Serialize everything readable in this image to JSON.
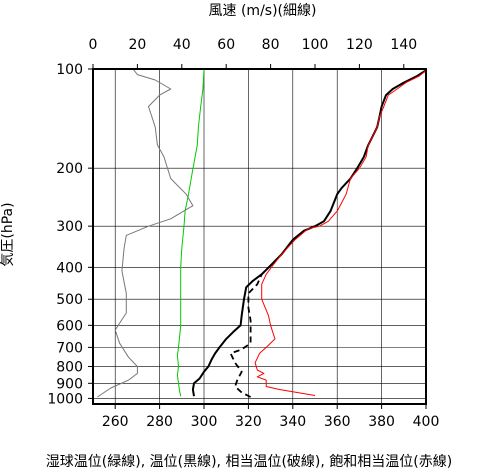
{
  "chart_data": {
    "type": "line",
    "top_axis_label": "風速 (m/s)(細線)",
    "bottom_axis_label": "湿球温位(緑線), 温位(黒線), 相当温位(破線), 飽和相当温位(赤線)",
    "y_axis_label": "気圧(hPa)",
    "y_scale": "log",
    "y_inverted": true,
    "ylim": [
      1040,
      100
    ],
    "y_ticks": [
      100,
      200,
      300,
      400,
      500,
      600,
      700,
      800,
      900,
      1000
    ],
    "x_bottom_range": [
      250,
      400
    ],
    "x_bottom_ticks": [
      260,
      280,
      300,
      320,
      340,
      360,
      380,
      400
    ],
    "x_top_range": [
      0,
      150
    ],
    "x_top_ticks": [
      0,
      20,
      40,
      60,
      80,
      100,
      120,
      140
    ],
    "grid": true,
    "series": [
      {
        "name": "湿球温位",
        "axis": "bottom",
        "color": "#00cc00",
        "dash": false,
        "points": [
          [
            289.5,
            985
          ],
          [
            289,
            950
          ],
          [
            288.5,
            900
          ],
          [
            288,
            850
          ],
          [
            288.5,
            800
          ],
          [
            288,
            740
          ],
          [
            288.5,
            700
          ],
          [
            289,
            650
          ],
          [
            289.5,
            600
          ],
          [
            289.5,
            550
          ],
          [
            289.5,
            500
          ],
          [
            289.5,
            450
          ],
          [
            289.5,
            400
          ],
          [
            290,
            350
          ],
          [
            291,
            300
          ],
          [
            291.5,
            270
          ],
          [
            293,
            240
          ],
          [
            294.5,
            210
          ],
          [
            296,
            185
          ],
          [
            297,
            170
          ],
          [
            297.5,
            150
          ],
          [
            298.5,
            130
          ],
          [
            299.5,
            115
          ],
          [
            300,
            100
          ]
        ]
      },
      {
        "name": "温位",
        "axis": "bottom",
        "color": "#000000",
        "dash": false,
        "points": [
          [
            295.5,
            985
          ],
          [
            295,
            940
          ],
          [
            295.5,
            900
          ],
          [
            298,
            870
          ],
          [
            300,
            830
          ],
          [
            302,
            800
          ],
          [
            303.5,
            760
          ],
          [
            305,
            730
          ],
          [
            307,
            700
          ],
          [
            310,
            660
          ],
          [
            313,
            630
          ],
          [
            316.5,
            600
          ],
          [
            317,
            560
          ],
          [
            318,
            500
          ],
          [
            319,
            460
          ],
          [
            322,
            440
          ],
          [
            326,
            420
          ],
          [
            330,
            395
          ],
          [
            335,
            365
          ],
          [
            340,
            330
          ],
          [
            345,
            310
          ],
          [
            350,
            300
          ],
          [
            354,
            290
          ],
          [
            357,
            270
          ],
          [
            360,
            240
          ],
          [
            362,
            230
          ],
          [
            366,
            215
          ],
          [
            369,
            200
          ],
          [
            372,
            185
          ],
          [
            374,
            170
          ],
          [
            376,
            160
          ],
          [
            378,
            150
          ],
          [
            379,
            140
          ],
          [
            380,
            130
          ],
          [
            382,
            120
          ],
          [
            385,
            115
          ],
          [
            390,
            110
          ],
          [
            396,
            105
          ],
          [
            400,
            101
          ]
        ]
      },
      {
        "name": "相当温位",
        "axis": "bottom",
        "color": "#000000",
        "dash": true,
        "points": [
          [
            321,
            990
          ],
          [
            317,
            960
          ],
          [
            314,
            920
          ],
          [
            315,
            880
          ],
          [
            317,
            830
          ],
          [
            314,
            780
          ],
          [
            312,
            730
          ],
          [
            317,
            710
          ],
          [
            321,
            680
          ],
          [
            321,
            630
          ],
          [
            321,
            580
          ],
          [
            320,
            530
          ],
          [
            320,
            480
          ],
          [
            324,
            450
          ],
          [
            326,
            420
          ],
          [
            330,
            395
          ],
          [
            335,
            365
          ],
          [
            340,
            330
          ],
          [
            345,
            310
          ],
          [
            350,
            300
          ]
        ]
      },
      {
        "name": "飽和相当温位",
        "axis": "bottom",
        "color": "#ff0000",
        "dash": false,
        "points": [
          [
            350,
            980
          ],
          [
            342,
            960
          ],
          [
            334,
            940
          ],
          [
            328,
            920
          ],
          [
            328,
            880
          ],
          [
            324,
            860
          ],
          [
            327,
            840
          ],
          [
            324,
            820
          ],
          [
            323,
            780
          ],
          [
            325,
            730
          ],
          [
            328,
            700
          ],
          [
            332,
            660
          ],
          [
            331,
            630
          ],
          [
            330,
            600
          ],
          [
            329,
            560
          ],
          [
            326,
            500
          ],
          [
            326,
            450
          ],
          [
            328,
            420
          ],
          [
            331,
            395
          ],
          [
            335,
            365
          ],
          [
            341,
            330
          ],
          [
            347,
            305
          ],
          [
            352,
            300
          ],
          [
            356,
            290
          ],
          [
            360,
            270
          ],
          [
            362,
            255
          ],
          [
            364,
            240
          ],
          [
            366,
            215
          ],
          [
            370,
            200
          ],
          [
            373,
            185
          ],
          [
            374,
            170
          ],
          [
            376,
            160
          ],
          [
            378,
            150
          ],
          [
            379,
            140
          ],
          [
            381,
            130
          ],
          [
            383,
            120
          ],
          [
            387,
            115
          ],
          [
            391,
            110
          ],
          [
            397,
            105
          ],
          [
            400,
            101
          ]
        ]
      },
      {
        "name": "風速",
        "axis": "top",
        "color": "#777777",
        "dash": false,
        "points": [
          [
            2,
            990
          ],
          [
            8,
            930
          ],
          [
            16,
            880
          ],
          [
            20,
            840
          ],
          [
            20,
            800
          ],
          [
            16,
            750
          ],
          [
            12,
            680
          ],
          [
            10,
            620
          ],
          [
            15,
            550
          ],
          [
            15,
            480
          ],
          [
            13,
            410
          ],
          [
            14,
            350
          ],
          [
            15,
            320
          ],
          [
            25,
            300
          ],
          [
            35,
            285
          ],
          [
            45,
            260
          ],
          [
            42,
            240
          ],
          [
            35,
            215
          ],
          [
            32,
            185
          ],
          [
            29,
            170
          ],
          [
            28,
            150
          ],
          [
            25,
            130
          ],
          [
            30,
            120
          ],
          [
            35,
            115
          ],
          [
            28,
            108
          ],
          [
            20,
            104
          ],
          [
            18,
            100
          ]
        ]
      }
    ]
  }
}
